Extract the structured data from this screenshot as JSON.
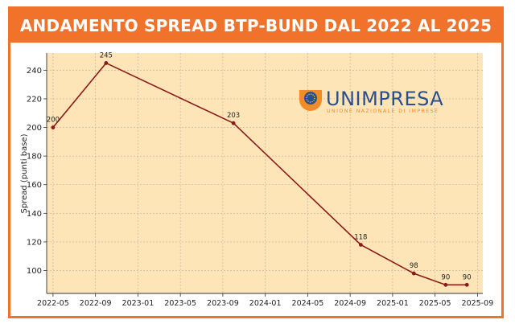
{
  "header": {
    "title": "ANDAMENTO SPREAD BTP-BUND DAL 2022 AL 2025"
  },
  "logo": {
    "brand": "UNIMPRESA",
    "tagline": "UNIONE NAZIONALE DI IMPRESE"
  },
  "colors": {
    "accent": "#f0722b",
    "plot_bg": "#fde5b8",
    "line": "#8b1a1a",
    "logo_blue": "#2b4f8e",
    "logo_orange": "#f28c28"
  },
  "chart_data": {
    "type": "line",
    "title": "",
    "xlabel": "",
    "ylabel": "Spread (punti base)",
    "ylim": [
      84,
      252
    ],
    "yticks": [
      100,
      120,
      140,
      160,
      180,
      200,
      220,
      240
    ],
    "xticks": [
      "2022-05",
      "2022-09",
      "2023-01",
      "2023-05",
      "2023-09",
      "2024-01",
      "2024-05",
      "2024-09",
      "2025-01",
      "2025-05",
      "2025-09"
    ],
    "grid": true,
    "series": [
      {
        "x": [
          "2022-05",
          "2022-10",
          "2023-10",
          "2024-10",
          "2025-03",
          "2025-06",
          "2025-08"
        ],
        "values": [
          200,
          245,
          203,
          118,
          98,
          90,
          90
        ],
        "labels": [
          "200",
          "245",
          "203",
          "118",
          "98",
          "90",
          "90"
        ]
      }
    ]
  }
}
